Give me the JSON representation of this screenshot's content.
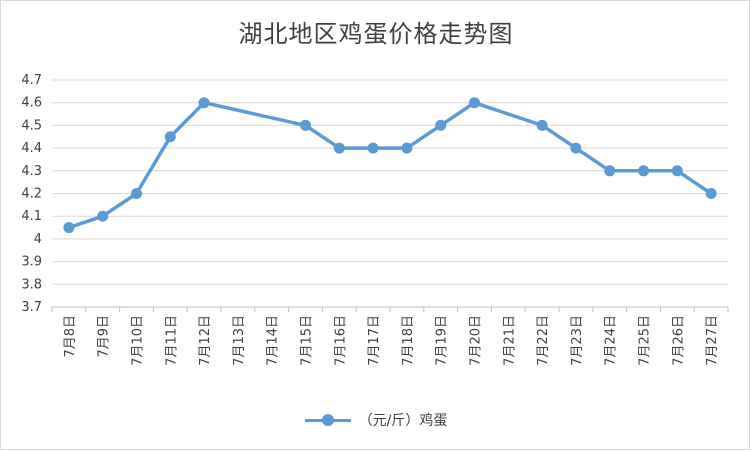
{
  "chart_data": {
    "type": "line",
    "title": "湖北地区鸡蛋价格走势图",
    "categories": [
      "7月8日",
      "7月9日",
      "7月10日",
      "7月11日",
      "7月12日",
      "7月13日",
      "7月14日",
      "7月15日",
      "7月16日",
      "7月17日",
      "7月18日",
      "7月19日",
      "7月20日",
      "7月21日",
      "7月22日",
      "7月23日",
      "7月24日",
      "7月25日",
      "7月26日",
      "7月27日"
    ],
    "series": [
      {
        "name": "（元/斤）鸡蛋",
        "color": "#5b9bd5",
        "values": [
          4.05,
          4.1,
          4.2,
          4.45,
          4.6,
          null,
          null,
          4.5,
          4.4,
          4.4,
          4.4,
          4.5,
          4.6,
          null,
          4.5,
          4.4,
          4.3,
          4.3,
          4.3,
          4.2
        ]
      }
    ],
    "ylim": [
      3.7,
      4.7
    ],
    "yticks": [
      "3.7",
      "3.8",
      "3.9",
      "4",
      "4.1",
      "4.2",
      "4.3",
      "4.4",
      "4.5",
      "4.6",
      "4.7"
    ],
    "grid": true,
    "legend_position": "bottom"
  }
}
